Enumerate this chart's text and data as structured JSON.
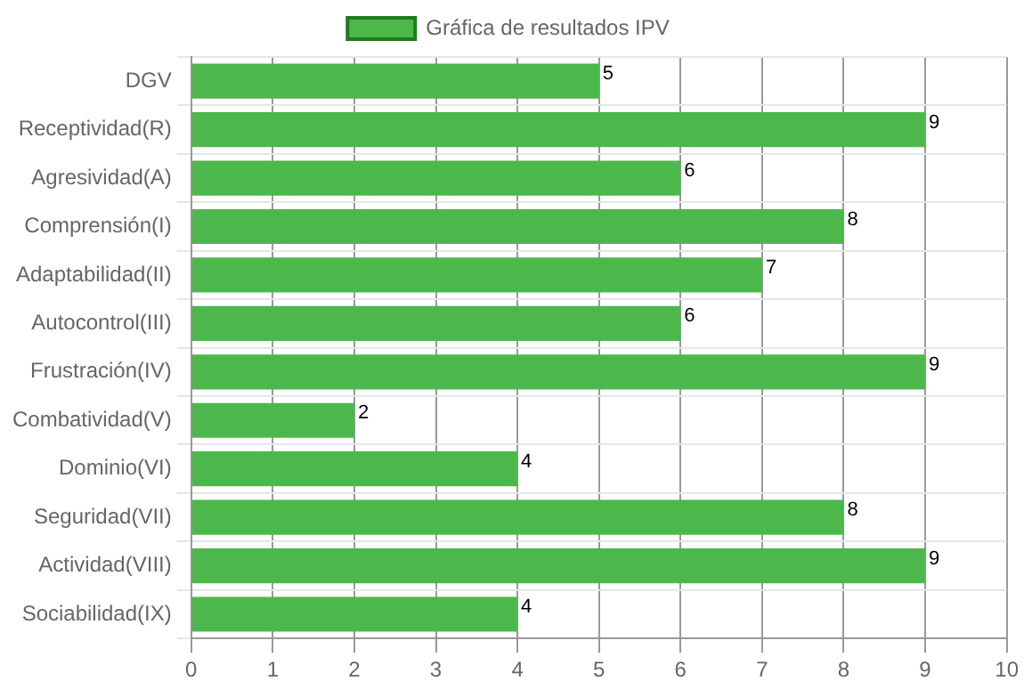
{
  "chart_data": {
    "type": "bar",
    "orientation": "horizontal",
    "categories": [
      "DGV",
      "Receptividad(R)",
      "Agresividad(A)",
      "Comprensión(I)",
      "Adaptabilidad(II)",
      "Autocontrol(III)",
      "Frustración(IV)",
      "Combatividad(V)",
      "Dominio(VI)",
      "Seguridad(VII)",
      "Actividad(VIII)",
      "Sociabilidad(IX)"
    ],
    "series": [
      {
        "name": "Gráfica de resultados IPV",
        "color": "#4cb84c",
        "values": [
          5,
          9,
          6,
          8,
          7,
          6,
          9,
          2,
          4,
          8,
          9,
          4
        ]
      }
    ],
    "xlim": [
      0,
      10
    ],
    "xticks": [
      0,
      1,
      2,
      3,
      4,
      5,
      6,
      7,
      8,
      9,
      10
    ],
    "grid": true,
    "legend": "top",
    "data_labels": true
  }
}
